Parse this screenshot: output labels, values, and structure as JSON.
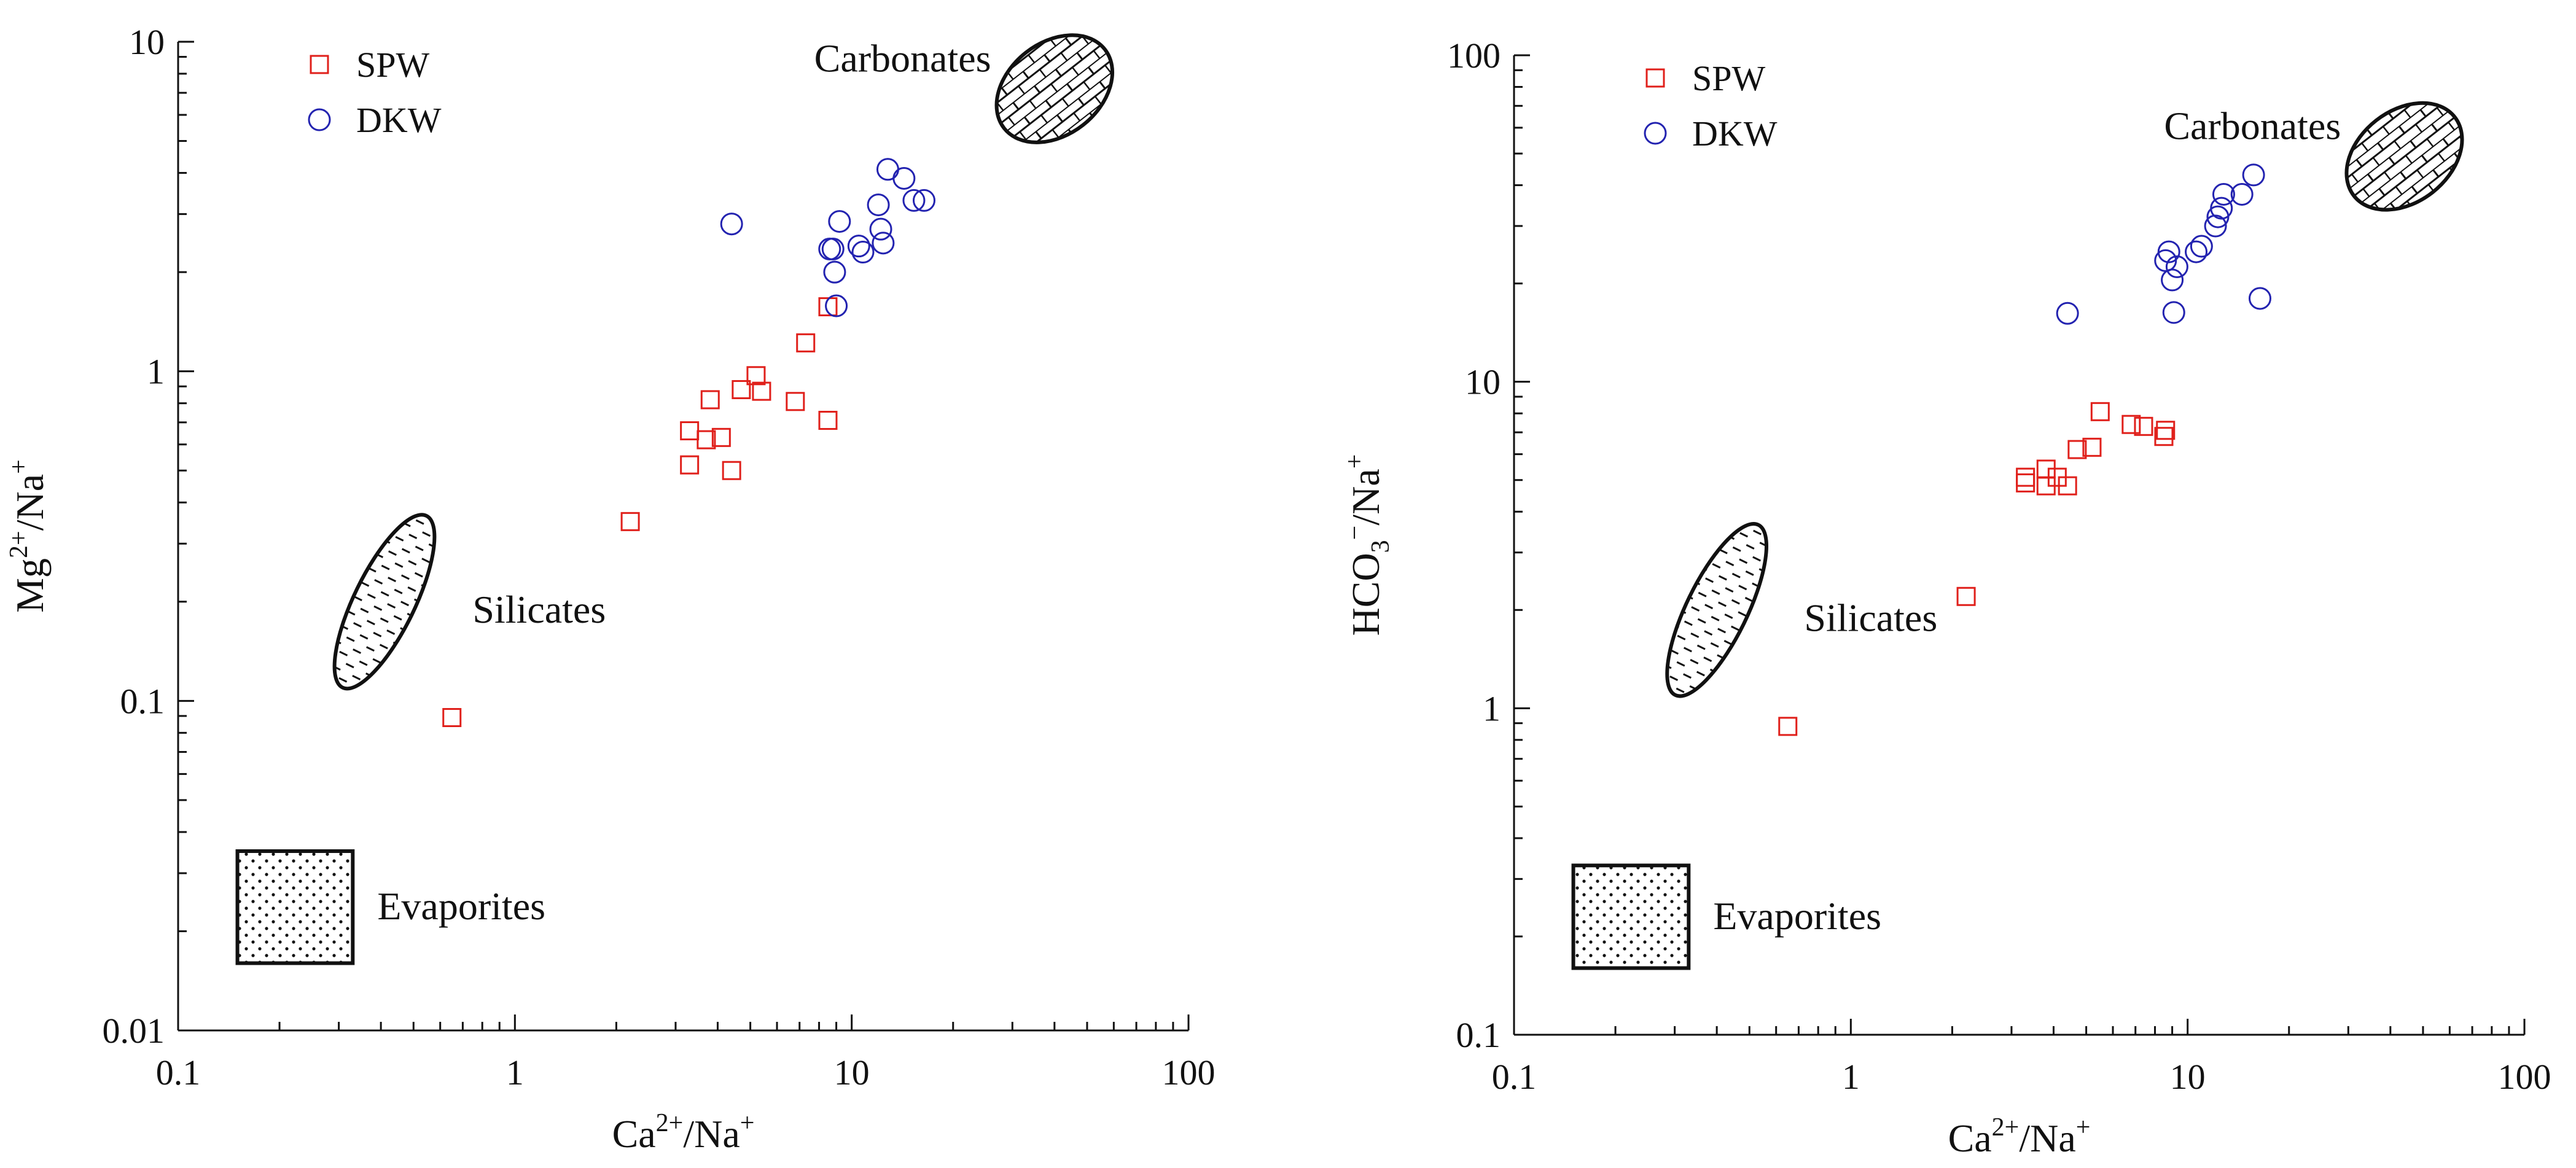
{
  "chart_data": [
    {
      "type": "scatter",
      "xscale": "log",
      "yscale": "log",
      "xlim": [
        0.1,
        100
      ],
      "ylim": [
        0.01,
        10
      ],
      "xticks": [
        "0.1",
        "1",
        "10",
        "100"
      ],
      "yticks": [
        "0.01",
        "0.1",
        "1",
        "10"
      ],
      "xlabel": {
        "base": "Ca",
        "sup1": "2+",
        "mid": "/Na",
        "sub": "",
        "sup2": "+"
      },
      "ylabel": {
        "base": "Mg",
        "sup1": "2+",
        "mid": "/Na",
        "sub": "",
        "sup2": "+"
      },
      "legend_position": "top-left",
      "regions": [
        {
          "label": "Carbonates",
          "shape": "ellipse",
          "pattern": "brick",
          "center": [
            40,
            7.2
          ],
          "rx_decades": 0.19,
          "ry_decades": 0.14,
          "rotation": -38,
          "label_side": "left"
        },
        {
          "label": "Silicates",
          "shape": "ellipse",
          "pattern": "dash",
          "center": [
            0.41,
            0.2
          ],
          "rx_decades": 0.09,
          "ry_decades": 0.29,
          "rotation": 26,
          "label_side": "right"
        },
        {
          "label": "Evaporites",
          "shape": "rect",
          "pattern": "dots",
          "x": [
            0.15,
            0.33
          ],
          "y": [
            0.016,
            0.035
          ],
          "label_side": "right"
        }
      ],
      "series": [
        {
          "name": "SPW",
          "marker": "square",
          "color": "#e0201b",
          "points": [
            [
              0.65,
              0.089
            ],
            [
              2.2,
              0.35
            ],
            [
              3.3,
              0.52
            ],
            [
              3.3,
              0.66
            ],
            [
              3.7,
              0.62
            ],
            [
              3.8,
              0.82
            ],
            [
              4.1,
              0.63
            ],
            [
              4.4,
              0.5
            ],
            [
              4.7,
              0.88
            ],
            [
              5.2,
              0.97
            ],
            [
              5.4,
              0.87
            ],
            [
              6.8,
              0.81
            ],
            [
              7.3,
              1.22
            ],
            [
              8.5,
              0.71
            ],
            [
              8.5,
              1.57
            ]
          ]
        },
        {
          "name": "DKW",
          "marker": "circle",
          "color": "#2323b0",
          "points": [
            [
              4.4,
              2.8
            ],
            [
              8.6,
              2.35
            ],
            [
              8.8,
              2.35
            ],
            [
              8.9,
              2.0
            ],
            [
              9.0,
              1.58
            ],
            [
              9.2,
              2.85
            ],
            [
              10.5,
              2.4
            ],
            [
              10.8,
              2.3
            ],
            [
              12.0,
              3.2
            ],
            [
              12.2,
              2.7
            ],
            [
              12.4,
              2.45
            ],
            [
              12.8,
              4.1
            ],
            [
              14.3,
              3.85
            ],
            [
              15.3,
              3.3
            ],
            [
              16.4,
              3.3
            ]
          ]
        }
      ]
    },
    {
      "type": "scatter",
      "xscale": "log",
      "yscale": "log",
      "xlim": [
        0.1,
        100
      ],
      "ylim": [
        0.1,
        100
      ],
      "xticks": [
        "0.1",
        "1",
        "10",
        "100"
      ],
      "yticks": [
        "0.1",
        "1",
        "10",
        "100"
      ],
      "xlabel": {
        "base": "Ca",
        "sup1": "2+",
        "mid": "/Na",
        "sub": "",
        "sup2": "+"
      },
      "ylabel": {
        "base": "HCO",
        "sup1": "",
        "mid": "",
        "sub": "3",
        "sup2": "−",
        "tail": "/Na",
        "sup3": "+"
      },
      "legend_position": "top-left",
      "regions": [
        {
          "label": "Carbonates",
          "shape": "ellipse",
          "pattern": "brick",
          "center": [
            44,
            49
          ],
          "rx_decades": 0.19,
          "ry_decades": 0.14,
          "rotation": -38,
          "label_side": "left"
        },
        {
          "label": "Silicates",
          "shape": "ellipse",
          "pattern": "dash",
          "center": [
            0.4,
            2.0
          ],
          "rx_decades": 0.09,
          "ry_decades": 0.29,
          "rotation": 26,
          "label_side": "right"
        },
        {
          "label": "Evaporites",
          "shape": "rect",
          "pattern": "dots",
          "x": [
            0.15,
            0.33
          ],
          "y": [
            0.16,
            0.33
          ],
          "label_side": "right"
        }
      ],
      "series": [
        {
          "name": "SPW",
          "marker": "square",
          "color": "#e0201b",
          "points": [
            [
              0.65,
              0.88
            ],
            [
              2.2,
              2.2
            ],
            [
              3.3,
              4.9
            ],
            [
              3.3,
              5.1
            ],
            [
              3.8,
              4.8
            ],
            [
              3.8,
              5.4
            ],
            [
              4.1,
              5.1
            ],
            [
              4.4,
              4.8
            ],
            [
              4.7,
              6.2
            ],
            [
              5.2,
              6.3
            ],
            [
              5.5,
              8.1
            ],
            [
              6.8,
              7.4
            ],
            [
              7.4,
              7.3
            ],
            [
              8.5,
              6.8
            ],
            [
              8.6,
              7.1
            ]
          ]
        },
        {
          "name": "DKW",
          "marker": "circle",
          "color": "#2323b0",
          "points": [
            [
              4.4,
              16.2
            ],
            [
              8.6,
              23.5
            ],
            [
              8.8,
              25
            ],
            [
              9.0,
              20.5
            ],
            [
              9.1,
              16.3
            ],
            [
              9.3,
              22.5
            ],
            [
              10.6,
              25
            ],
            [
              11.0,
              26
            ],
            [
              12.1,
              30
            ],
            [
              12.3,
              32
            ],
            [
              12.6,
              34
            ],
            [
              12.8,
              37.5
            ],
            [
              14.5,
              37.5
            ],
            [
              15.7,
              43
            ],
            [
              16.4,
              18
            ]
          ]
        }
      ]
    }
  ]
}
